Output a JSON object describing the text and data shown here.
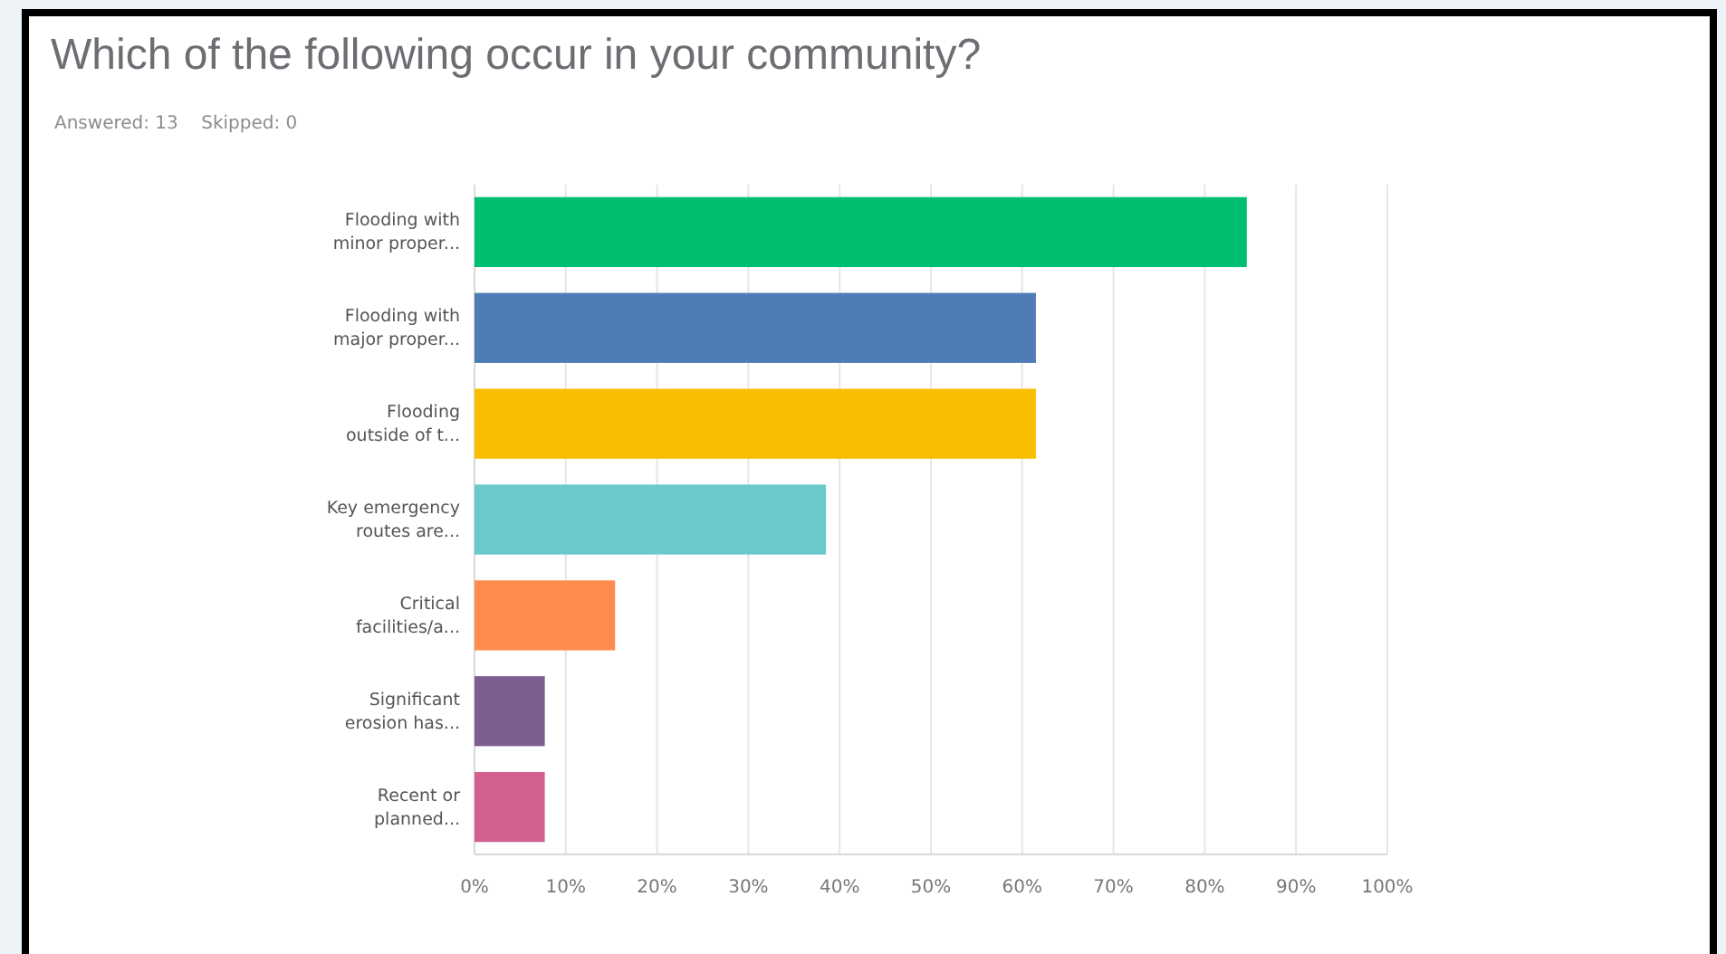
{
  "chart_data": {
    "type": "bar",
    "orientation": "horizontal",
    "title": "Which of the following occur in your community?",
    "subtitle": "Answered: 13    Skipped: 0",
    "categories": [
      "Flooding with minor proper...",
      "Flooding with major proper...",
      "Flooding outside of t...",
      "Key emergency routes are...",
      "Critical facilities/a...",
      "Significant erosion has...",
      "Recent or planned..."
    ],
    "values": [
      84.6,
      61.5,
      61.5,
      38.5,
      15.4,
      7.7,
      7.7
    ],
    "colors": [
      "#00bf6f",
      "#507cb6",
      "#f9be00",
      "#6bc8cd",
      "#ff8b4f",
      "#7d5e90",
      "#d25f90"
    ],
    "xlim": [
      0,
      100
    ],
    "xticks": [
      {
        "value": 0,
        "label": "0%"
      },
      {
        "value": 10,
        "label": "10%"
      },
      {
        "value": 20,
        "label": "20%"
      },
      {
        "value": 30,
        "label": "30%"
      },
      {
        "value": 40,
        "label": "40%"
      },
      {
        "value": 50,
        "label": "50%"
      },
      {
        "value": 60,
        "label": "60%"
      },
      {
        "value": 70,
        "label": "70%"
      },
      {
        "value": 80,
        "label": "80%"
      },
      {
        "value": 90,
        "label": "90%"
      },
      {
        "value": 100,
        "label": "100%"
      }
    ],
    "grid": "x"
  }
}
